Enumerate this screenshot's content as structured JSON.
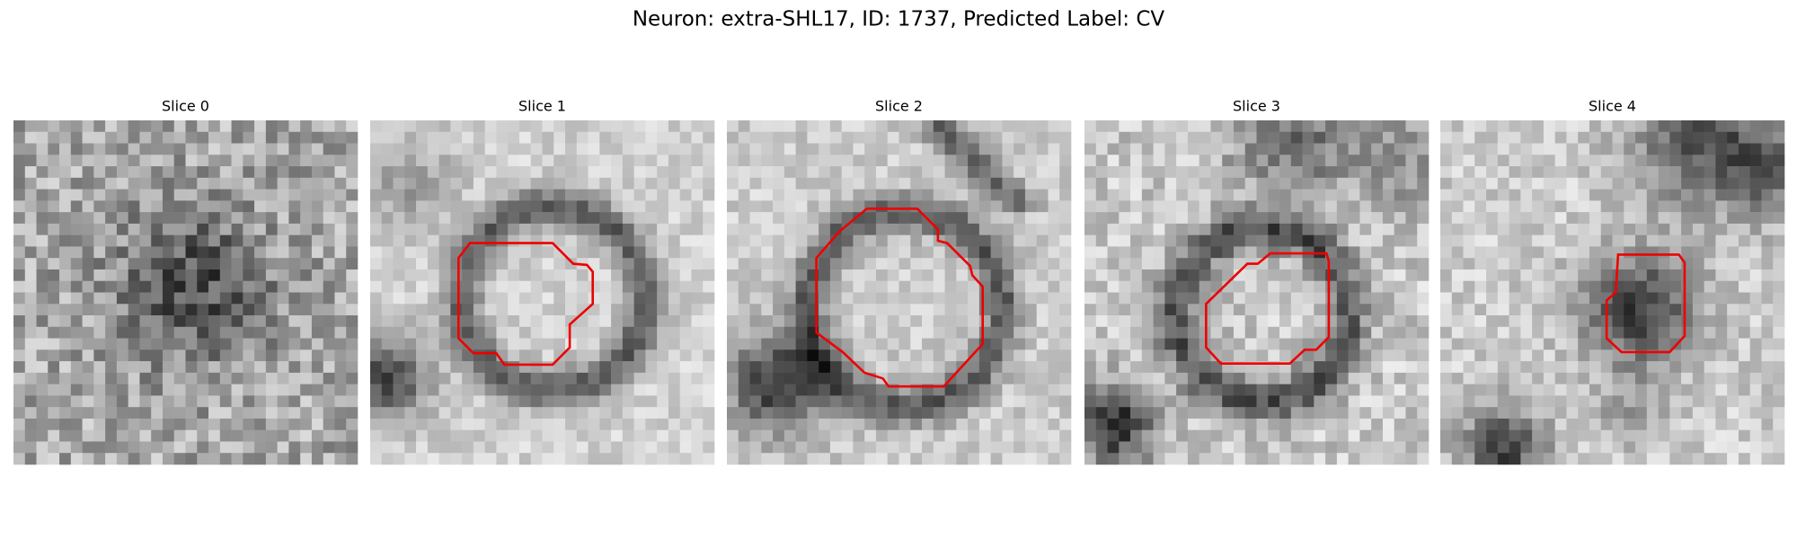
{
  "figure": {
    "title": "Neuron: extra-SHL17, ID: 1737, Predicted Label: CV",
    "panels": [
      {
        "title": "Slice 0"
      },
      {
        "title": "Slice 1"
      },
      {
        "title": "Slice 2"
      },
      {
        "title": "Slice 3"
      },
      {
        "title": "Slice 4"
      }
    ]
  }
}
